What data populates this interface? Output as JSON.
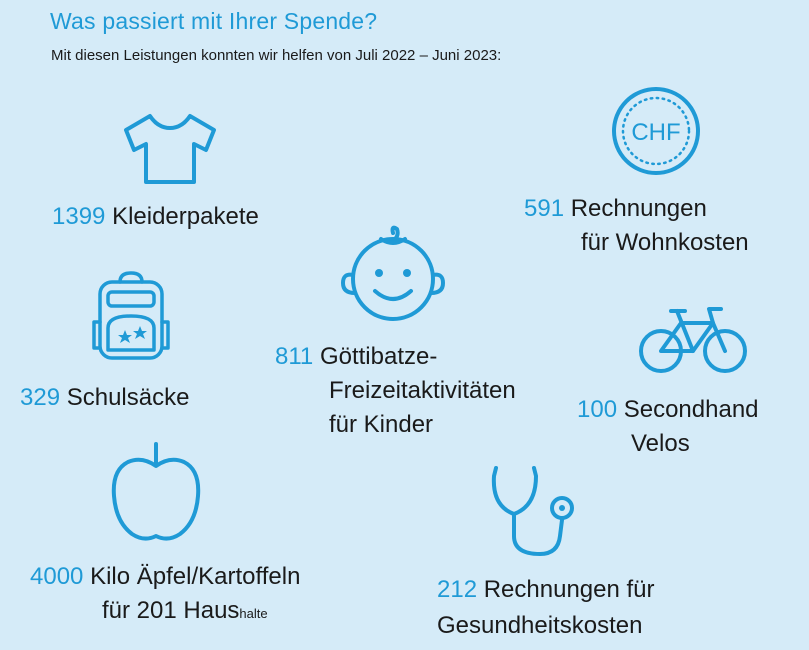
{
  "header": {
    "title": "Was passiert mit Ihrer Spende?",
    "subtitle": "Mit diesen Leistungen konnten wir helfen von Juli 2022 – Juni 2023:"
  },
  "colors": {
    "accent": "#1f9ad6",
    "background": "#d5ebf8",
    "text": "#1a1a1a"
  },
  "items": [
    {
      "icon": "tshirt-icon",
      "number": "1399",
      "text": "Kleiderpakete"
    },
    {
      "icon": "chf-coin-icon",
      "number": "591",
      "line1": "Rechnungen",
      "line2": "für Wohnkosten"
    },
    {
      "icon": "school-bag-icon",
      "number": "329",
      "text": "Schulsäcke"
    },
    {
      "icon": "child-face-icon",
      "number": "811",
      "line1": "Göttibatze-",
      "line2": "Freizeitaktivitäten",
      "line3": "für Kinder"
    },
    {
      "icon": "bicycle-icon",
      "number": "100",
      "line1": "Secondhand",
      "line2": "Velos"
    },
    {
      "icon": "apple-icon",
      "number": "4000",
      "line1": "Kilo Äpfel/Kartoffeln",
      "line2": "für 201 Haus",
      "line2_small": "halte"
    },
    {
      "icon": "stethoscope-icon",
      "number": "212",
      "line1": "Rechnungen für",
      "line2": "Gesundheitskosten"
    }
  ],
  "coin_label": "CHF"
}
